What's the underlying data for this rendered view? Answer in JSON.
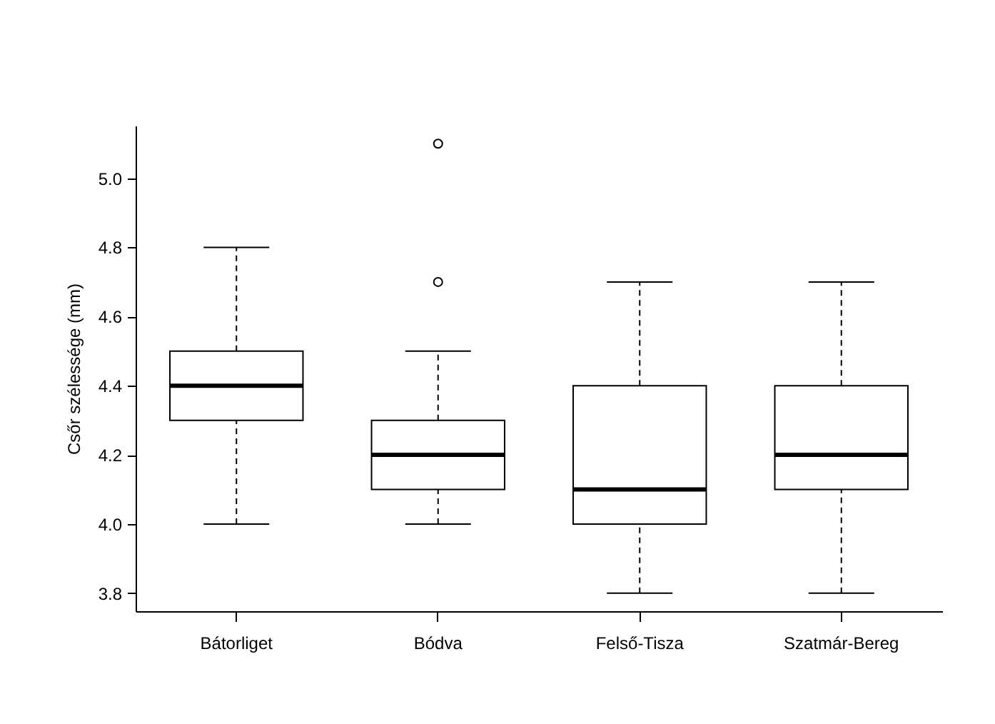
{
  "chart_data": {
    "type": "box",
    "ylabel": "Csőr szélessége (mm)",
    "categories": [
      "Bátorliget",
      "Bódva",
      "Felső-Tisza",
      "Szatmár-Bereg"
    ],
    "boxes": [
      {
        "low": 4.0,
        "q1": 4.3,
        "median": 4.4,
        "q3": 4.5,
        "high": 4.8
      },
      {
        "low": 4.0,
        "q1": 4.1,
        "median": 4.2,
        "q3": 4.3,
        "high": 4.5,
        "outliers": [
          4.7,
          5.1
        ]
      },
      {
        "low": 3.8,
        "q1": 4.0,
        "median": 4.1,
        "q3": 4.4,
        "high": 4.7
      },
      {
        "low": 3.8,
        "q1": 4.1,
        "median": 4.2,
        "q3": 4.4,
        "high": 4.7
      }
    ],
    "ylim": [
      3.748,
      5.152
    ],
    "yticks": [
      3.8,
      {
        "value": 4,
        "label": "4.0"
      },
      4.2,
      4.4,
      4.6,
      4.8,
      {
        "value": 5,
        "label": "5.0"
      }
    ],
    "grid": false
  }
}
